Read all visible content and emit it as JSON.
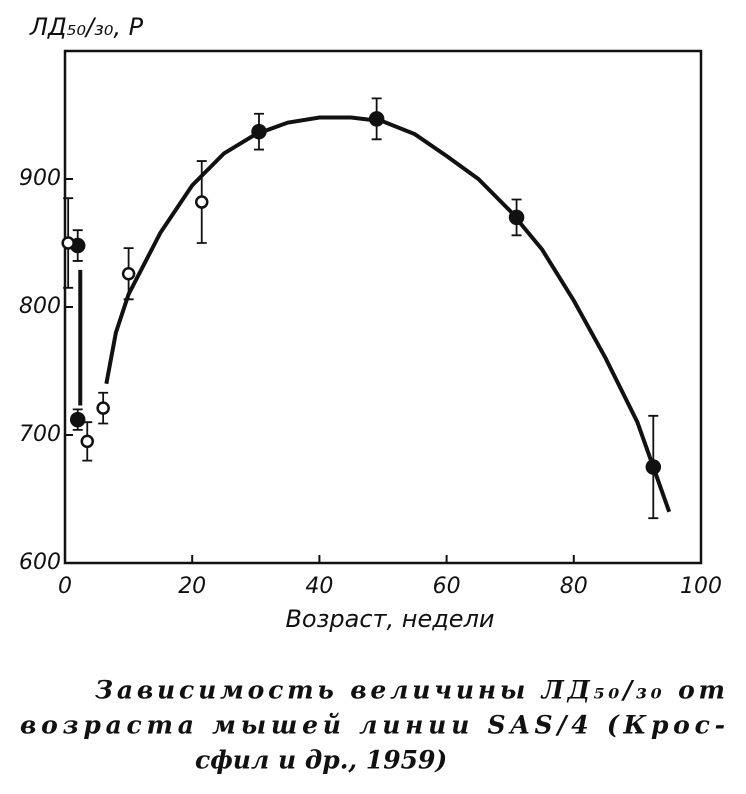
{
  "chart_data": {
    "type": "scatter",
    "ylabel": "ЛД₅₀/₃₀, Р",
    "xlabel": "Возраст, недели",
    "caption": [
      "Зависимость величины ЛД₅₀/₃₀ от",
      "возраста мышей линии SAS/4 (Крос-",
      "сфил и др., 1959)"
    ],
    "xlim": [
      0,
      100
    ],
    "xticks": [
      0,
      20,
      40,
      60,
      80,
      100
    ],
    "ylim": [
      600,
      1000
    ],
    "yticks": [
      600,
      700,
      800,
      900
    ],
    "color": "#111111",
    "series": [
      {
        "marker": "filled",
        "x": [
          2,
          2,
          30.5,
          49,
          71,
          92.5
        ],
        "values": [
          848,
          712,
          937,
          947,
          870,
          675
        ],
        "errors": [
          12,
          8,
          14,
          16,
          14,
          40
        ]
      },
      {
        "marker": "open",
        "x": [
          0.5,
          3.5,
          6,
          10,
          21.5
        ],
        "values": [
          850,
          695,
          721,
          826,
          882
        ],
        "errors": [
          35,
          15,
          12,
          20,
          32
        ]
      }
    ],
    "curve": {
      "x": [
        2.4,
        2.4,
        null,
        6.5,
        8,
        10,
        15,
        20,
        25,
        30,
        35,
        40,
        45,
        50,
        55,
        60,
        65,
        70,
        75,
        80,
        85,
        90,
        95
      ],
      "y": [
        829,
        723,
        null,
        740,
        780,
        810,
        858,
        895,
        920,
        935,
        944,
        948,
        948,
        945,
        935,
        918,
        900,
        875,
        845,
        805,
        760,
        710,
        640
      ]
    }
  }
}
